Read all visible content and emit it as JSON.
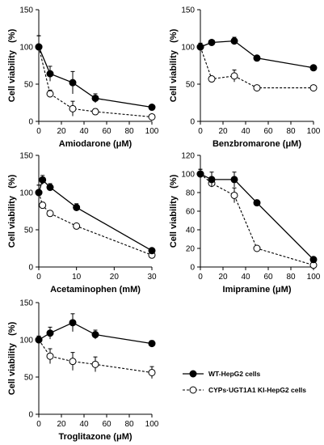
{
  "legend": {
    "wt_label": "WT-HepG2 cells",
    "ki_label": "CYPs·UGT1A1 KI-HepG2 cells"
  },
  "chart_data": [
    {
      "type": "line",
      "xlabel": "Amiodarone (μM)",
      "ylabel": "Cell viability   (%)",
      "xlim": [
        0,
        100
      ],
      "ylim": [
        0,
        150
      ],
      "xticks": [
        0,
        20,
        40,
        60,
        80,
        100
      ],
      "yticks": [
        0,
        50,
        100,
        150
      ],
      "series": [
        {
          "name": "WT-HepG2 cells",
          "x": [
            0,
            10,
            30,
            50,
            100
          ],
          "y": [
            100,
            64,
            52,
            31,
            19
          ],
          "err": [
            15,
            10,
            15,
            6,
            3
          ]
        },
        {
          "name": "CYPs·UGT1A1 KI-HepG2 cells",
          "x": [
            0,
            10,
            30,
            50,
            100
          ],
          "y": [
            100,
            37,
            17,
            13,
            6
          ],
          "err": [
            15,
            5,
            10,
            4,
            2
          ]
        }
      ]
    },
    {
      "type": "line",
      "xlabel": "Benzbromarone (μM)",
      "ylabel": "Cell viability   (%)",
      "xlim": [
        0,
        100
      ],
      "ylim": [
        0,
        150
      ],
      "xticks": [
        0,
        20,
        40,
        60,
        80,
        100
      ],
      "yticks": [
        0,
        50,
        100,
        150
      ],
      "series": [
        {
          "name": "WT-HepG2 cells",
          "x": [
            0,
            10,
            30,
            50,
            100
          ],
          "y": [
            100,
            106,
            108,
            85,
            72
          ],
          "err": [
            5,
            3,
            5,
            2,
            2
          ]
        },
        {
          "name": "CYPs·UGT1A1 KI-HepG2 cells",
          "x": [
            0,
            10,
            30,
            50,
            100
          ],
          "y": [
            100,
            57,
            61,
            45,
            45
          ],
          "err": [
            5,
            3,
            8,
            2,
            3
          ]
        }
      ]
    },
    {
      "type": "line",
      "xlabel": "Acetaminophen (mM)",
      "ylabel": "Cell viability   (%)",
      "xlim": [
        0,
        30
      ],
      "ylim": [
        0,
        150
      ],
      "xticks": [
        0,
        10,
        20,
        30
      ],
      "yticks": [
        0,
        50,
        100,
        150
      ],
      "series": [
        {
          "name": "WT-HepG2 cells",
          "x": [
            0,
            1,
            3,
            10,
            30
          ],
          "y": [
            100,
            117,
            107,
            80,
            22
          ],
          "err": [
            10,
            6,
            5,
            5,
            2
          ]
        },
        {
          "name": "CYPs·UGT1A1 KI-HepG2 cells",
          "x": [
            0,
            1,
            3,
            10,
            30
          ],
          "y": [
            100,
            83,
            72,
            55,
            16
          ],
          "err": [
            10,
            4,
            3,
            2,
            2
          ]
        }
      ]
    },
    {
      "type": "line",
      "xlabel": "Imipramine (μM)",
      "ylabel": "Cell viability   (%)",
      "xlim": [
        0,
        100
      ],
      "ylim": [
        0,
        120
      ],
      "xticks": [
        0,
        20,
        40,
        60,
        80,
        100
      ],
      "yticks": [
        0,
        20,
        40,
        60,
        80,
        100,
        120
      ],
      "series": [
        {
          "name": "WT-HepG2 cells",
          "x": [
            0,
            10,
            30,
            50,
            100
          ],
          "y": [
            100,
            94,
            94,
            69,
            8
          ],
          "err": [
            5,
            8,
            8,
            3,
            2
          ]
        },
        {
          "name": "CYPs·UGT1A1 KI-HepG2 cells",
          "x": [
            0,
            10,
            30,
            50,
            100
          ],
          "y": [
            100,
            90,
            77,
            20,
            2
          ],
          "err": [
            5,
            4,
            8,
            2,
            1
          ]
        }
      ]
    },
    {
      "type": "line",
      "xlabel": "Troglitazone (μM)",
      "ylabel": "Cell viability   (%)",
      "xlim": [
        0,
        100
      ],
      "ylim": [
        0,
        150
      ],
      "xticks": [
        0,
        20,
        40,
        60,
        80,
        100
      ],
      "yticks": [
        0,
        50,
        100,
        150
      ],
      "series": [
        {
          "name": "WT-HepG2 cells",
          "x": [
            0,
            10,
            30,
            50,
            100
          ],
          "y": [
            100,
            109,
            123,
            107,
            95
          ],
          "err": [
            5,
            8,
            12,
            6,
            4
          ]
        },
        {
          "name": "CYPs·UGT1A1 KI-HepG2 cells",
          "x": [
            0,
            10,
            30,
            50,
            100
          ],
          "y": [
            100,
            78,
            71,
            67,
            56
          ],
          "err": [
            5,
            10,
            12,
            10,
            8
          ]
        }
      ]
    }
  ]
}
